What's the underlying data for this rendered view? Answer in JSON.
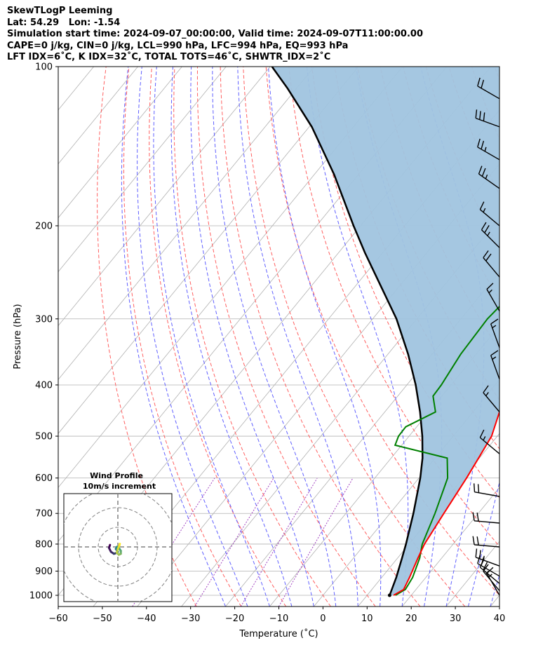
{
  "header": {
    "title_line1": "SkewTLogP Leeming",
    "title_line2": "Lat: 54.29   Lon: -1.54",
    "title_line3": "Simulation start time: 2024-09-07_00:00:00, Valid time: 2024-09-07T11:00:00.00",
    "title_line4": "CAPE=0 j/kg, CIN=0 j/kg, LCL=990 hPa, LFC=994 hPa, EQ=993 hPa",
    "title_line5": "LFT IDX=6˚C, K IDX=32˚C, TOTAL TOTS=46˚C, SHWTR_IDX=2˚C"
  },
  "colors": {
    "temperature": "#ff0000",
    "dewpoint": "#008000",
    "parcel": "#000000",
    "cape_fill": "#a0c4df",
    "dry_adiabat": "#ff6060",
    "moist_adiabat": "#6060ff",
    "mixing_ratio": "#a040c0",
    "isotherm": "#b0b0b0",
    "inset_trace_start": "#440154",
    "inset_trace_end": "#fde725"
  },
  "chart_data": {
    "type": "line",
    "title": "SkewTLogP Leeming",
    "xlabel": "Temperature (˚C)",
    "ylabel": "Pressure (hPa)",
    "xlim": [
      -60,
      40
    ],
    "ylim": [
      1050,
      100
    ],
    "y_scale": "log",
    "x_ticks": [
      "−60",
      "−50",
      "−40",
      "−30",
      "−20",
      "−10",
      "0",
      "10",
      "20",
      "30",
      "40"
    ],
    "y_ticks": [
      "100",
      "200",
      "300",
      "400",
      "500",
      "600",
      "700",
      "800",
      "900",
      "1000"
    ],
    "grid": true,
    "series": [
      {
        "role": "temperature",
        "points": [
          [
            16.0,
            1000
          ],
          [
            17.2,
            975
          ],
          [
            16.3,
            925
          ],
          [
            14.6,
            850
          ],
          [
            13.5,
            800
          ],
          [
            12.2,
            700
          ],
          [
            10.8,
            600
          ],
          [
            9.8,
            550
          ],
          [
            8.7,
            500
          ],
          [
            6.0,
            450
          ],
          [
            2.8,
            400
          ],
          [
            -0.8,
            350
          ],
          [
            -5.1,
            300
          ],
          [
            -8.5,
            270
          ],
          [
            -10.7,
            250
          ],
          [
            -11.8,
            230
          ],
          [
            -12.3,
            215
          ],
          [
            -14.2,
            200
          ],
          [
            -17.0,
            180
          ],
          [
            -19.8,
            160
          ],
          [
            -23.2,
            140
          ],
          [
            -27.5,
            120
          ],
          [
            -30.5,
            110
          ],
          [
            -33.6,
            100
          ]
        ]
      },
      {
        "role": "dewpoint",
        "points": [
          [
            16.4,
            1000
          ],
          [
            17.6,
            975
          ],
          [
            17.0,
            925
          ],
          [
            15.0,
            850
          ],
          [
            13.0,
            800
          ],
          [
            10.2,
            700
          ],
          [
            6.5,
            600
          ],
          [
            2.7,
            550
          ],
          [
            -11.5,
            520
          ],
          [
            -12.4,
            500
          ],
          [
            -12.5,
            480
          ],
          [
            -8.5,
            450
          ],
          [
            -12.0,
            420
          ],
          [
            -12.2,
            400
          ],
          [
            -13.5,
            350
          ],
          [
            -14.0,
            300
          ],
          [
            -12.8,
            260
          ],
          [
            -12.0,
            230
          ],
          [
            -13.5,
            210
          ],
          [
            -16.0,
            190
          ],
          [
            -18.0,
            170
          ],
          [
            -18.5,
            160
          ],
          [
            -18.5,
            145
          ],
          [
            -18.5,
            140
          ],
          [
            -16.8,
            130
          ],
          [
            -13.0,
            115
          ],
          [
            -10.3,
            100
          ]
        ]
      },
      {
        "role": "parcel",
        "points": [
          [
            15.1,
            1000
          ],
          [
            13.3,
            925
          ],
          [
            11.0,
            850
          ],
          [
            9.3,
            800
          ],
          [
            5.3,
            700
          ],
          [
            0.3,
            600
          ],
          [
            -2.9,
            550
          ],
          [
            -7.0,
            500
          ],
          [
            -12.0,
            450
          ],
          [
            -18.0,
            400
          ],
          [
            -25.4,
            350
          ],
          [
            -34.6,
            300
          ],
          [
            -46.9,
            250
          ],
          [
            -54.0,
            225
          ],
          [
            -61.6,
            200
          ],
          [
            -75.5,
            160
          ],
          [
            -89.4,
            130
          ],
          [
            -102.0,
            110
          ],
          [
            -109.6,
            100
          ]
        ]
      }
    ],
    "inset": {
      "title_line1": "Wind Profile",
      "title_line2": "10m/s increment",
      "hodograph_uv": [
        [
          -4,
          1
        ],
        [
          -4.5,
          -0.5
        ],
        [
          -3.5,
          -2.5
        ],
        [
          -2,
          -3.5
        ],
        [
          -0.5,
          -3
        ],
        [
          0,
          -2.5
        ],
        [
          -1,
          -1
        ],
        [
          -0.5,
          0
        ],
        [
          0.5,
          -0.5
        ],
        [
          1.5,
          -2
        ],
        [
          1.5,
          -3.5
        ],
        [
          0.5,
          -4
        ],
        [
          -0.5,
          -3
        ],
        [
          0,
          -1
        ],
        [
          0.8,
          0.8
        ],
        [
          1,
          1.6
        ]
      ]
    },
    "barbs": [
      {
        "p": 115,
        "spd_kt": 20,
        "dir": 300
      },
      {
        "p": 130,
        "spd_kt": 30,
        "dir": 290
      },
      {
        "p": 150,
        "spd_kt": 25,
        "dir": 300
      },
      {
        "p": 170,
        "spd_kt": 25,
        "dir": 305
      },
      {
        "p": 200,
        "spd_kt": 15,
        "dir": 310
      },
      {
        "p": 220,
        "spd_kt": 25,
        "dir": 315
      },
      {
        "p": 250,
        "spd_kt": 20,
        "dir": 320
      },
      {
        "p": 290,
        "spd_kt": 15,
        "dir": 330
      },
      {
        "p": 340,
        "spd_kt": 15,
        "dir": 340
      },
      {
        "p": 390,
        "spd_kt": 15,
        "dir": 340
      },
      {
        "p": 450,
        "spd_kt": 15,
        "dir": 320
      },
      {
        "p": 540,
        "spd_kt": 15,
        "dir": 310
      },
      {
        "p": 650,
        "spd_kt": 20,
        "dir": 280
      },
      {
        "p": 730,
        "spd_kt": 20,
        "dir": 275
      },
      {
        "p": 810,
        "spd_kt": 20,
        "dir": 275
      },
      {
        "p": 880,
        "spd_kt": 25,
        "dir": 290
      },
      {
        "p": 920,
        "spd_kt": 20,
        "dir": 300
      },
      {
        "p": 950,
        "spd_kt": 20,
        "dir": 310
      },
      {
        "p": 980,
        "spd_kt": 15,
        "dir": 320
      },
      {
        "p": 1000,
        "spd_kt": 15,
        "dir": 330
      }
    ]
  }
}
